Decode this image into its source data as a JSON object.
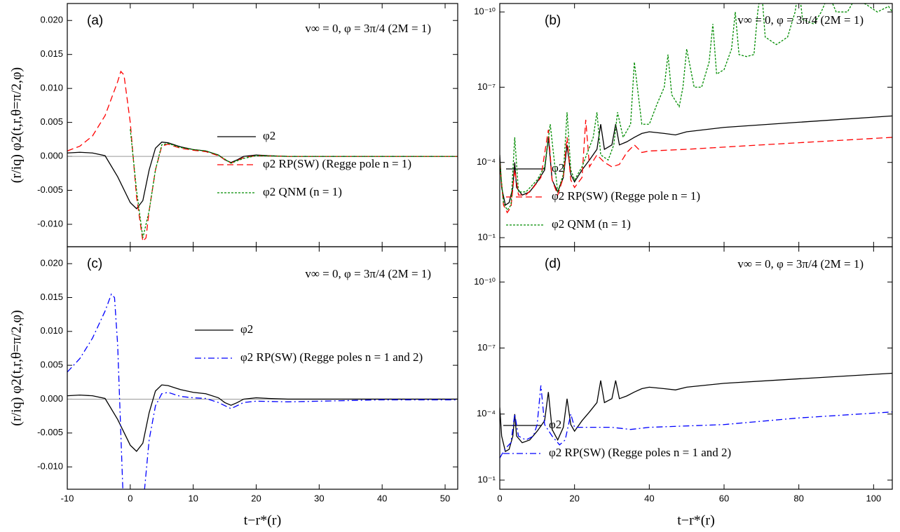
{
  "chart_data": [
    {
      "type": "line",
      "panel_label": "(a)",
      "annotation": "v∞ = 0, φ = 3π/4 (2M = 1)",
      "y_label": "(r/iq) φ2(t,r,θ=π/2,φ)",
      "xlim": [
        -10,
        52
      ],
      "xticks": [
        -10,
        0,
        10,
        20,
        30,
        40,
        50
      ],
      "ylim": [
        -0.0133,
        0.0225
      ],
      "yticks": [
        {
          "value": 0.02,
          "label": "0.020"
        },
        {
          "value": 0.015,
          "label": "0.015"
        },
        {
          "value": 0.01,
          "label": "0.010"
        },
        {
          "value": 0.005,
          "label": "0.005"
        },
        {
          "value": 0,
          "label": "0.000"
        },
        {
          "value": -0.005,
          "label": "-0.005"
        },
        {
          "value": -0.01,
          "label": "-0.010"
        }
      ],
      "log_y": false,
      "series": [
        {
          "name": "φ2",
          "color": "#000000",
          "dash": "solid",
          "x": [
            -10,
            -8,
            -6,
            -4,
            -2,
            0,
            1,
            2,
            3,
            4,
            5,
            6,
            8,
            10,
            12,
            14,
            15,
            16,
            17,
            18,
            20,
            22,
            25,
            30,
            40,
            52
          ],
          "values": [
            0.0005,
            0.0006,
            0.0005,
            0.0001,
            -0.003,
            -0.0068,
            -0.0077,
            -0.0065,
            -0.002,
            0.0012,
            0.0021,
            0.002,
            0.0014,
            0.001,
            0.0008,
            0.0002,
            -0.0005,
            -0.0009,
            -0.0005,
            0,
            0.0002,
            0.0001,
            0,
            0,
            0,
            0
          ]
        },
        {
          "name": "φ2 RP(SW) (Regge pole n = 1)",
          "color": "#ff0000",
          "dash": "dashed",
          "x": [
            -10,
            -8,
            -6,
            -4,
            -2,
            -1.5,
            -1,
            0,
            1,
            2,
            2.5,
            3,
            4,
            5,
            6,
            8,
            10,
            12,
            14,
            16,
            18,
            20,
            25,
            52
          ],
          "values": [
            0.0008,
            0.0015,
            0.003,
            0.006,
            0.011,
            0.0125,
            0.012,
            0.005,
            -0.006,
            -0.0125,
            -0.012,
            -0.008,
            -0.002,
            0.0015,
            0.0018,
            0.0012,
            0.0009,
            0.0007,
            0.0001,
            -0.001,
            -0.0002,
            0.0001,
            0,
            0
          ]
        },
        {
          "name": "φ2 QNM (n = 1)",
          "color": "#008c00",
          "dash": "dotted",
          "x": [
            0,
            1,
            2,
            3,
            4,
            5,
            6,
            8,
            10,
            12,
            14,
            16,
            18,
            20,
            25,
            52
          ],
          "values": [
            0.004,
            -0.005,
            -0.012,
            -0.008,
            -0.002,
            0.0017,
            0.0019,
            0.0013,
            0.001,
            0.0008,
            0.0002,
            -0.001,
            -0.0003,
            0.0001,
            0,
            0
          ]
        }
      ]
    },
    {
      "type": "line",
      "panel_label": "(b)",
      "annotation": "v∞ = 0, φ = 3π/4 (2M = 1)",
      "xlim": [
        0,
        105
      ],
      "xticks": [
        0,
        20,
        40,
        60,
        80,
        100
      ],
      "ylim": [
        0.23,
        4.6e-11
      ],
      "yticks": [
        {
          "value": 0.1,
          "label": "10⁻¹"
        },
        {
          "value": 0.0001,
          "label": "10⁻⁴"
        },
        {
          "value": 1e-07,
          "label": "10⁻⁷"
        },
        {
          "value": 1e-10,
          "label": "10⁻¹⁰"
        }
      ],
      "log_y": true,
      "series": [
        {
          "name": "φ2",
          "color": "#000000",
          "dash": "solid",
          "x": [
            0,
            0.5,
            1.5,
            2.5,
            3.5,
            4,
            4.5,
            6,
            8,
            10,
            12,
            13,
            14,
            15.5,
            17,
            18,
            19,
            20,
            22,
            24,
            26,
            27,
            28,
            30,
            31,
            32,
            34,
            36,
            38,
            40,
            44,
            47,
            50,
            60,
            80,
            105
          ],
          "values": [
            5e-05,
            0.001,
            0.005,
            0.004,
            0.001,
            0.0001,
            0.001,
            0.002,
            0.0015,
            0.0006,
            0.0002,
            1e-05,
            0.0005,
            0.0015,
            0.0004,
            2e-05,
            0.0003,
            0.0006,
            0.0002,
            8e-05,
            3e-05,
            3e-06,
            3e-05,
            2e-05,
            3e-06,
            2e-05,
            1.5e-05,
            1e-05,
            7e-06,
            6e-06,
            7e-06,
            8e-06,
            6e-06,
            4e-06,
            2.5e-06,
            1.4e-06
          ]
        },
        {
          "name": "φ2 RP(SW) (Regge pole n = 1)",
          "color": "#ff0000",
          "dash": "dashed",
          "x": [
            0,
            1,
            2,
            3,
            4,
            5,
            7,
            9,
            11,
            13,
            14,
            15.5,
            17,
            18,
            19,
            20,
            22,
            23,
            24,
            26,
            28,
            30,
            32,
            34,
            36,
            38,
            40,
            50,
            70,
            105
          ],
          "values": [
            0.0001,
            0.005,
            0.01,
            0.006,
            0.0002,
            0.002,
            0.002,
            0.001,
            0.0004,
            5e-06,
            0.0005,
            0.002,
            0.0004,
            1e-05,
            0.0005,
            0.001,
            0.0004,
            2e-06,
            0.00015,
            5e-05,
            0.0001,
            0.00015,
            0.00012,
            4e-05,
            2e-05,
            4e-05,
            3.5e-05,
            3e-05,
            2e-05,
            1e-05
          ]
        },
        {
          "name": "φ2 QNM (n = 1)",
          "color": "#008c00",
          "dash": "dotted",
          "x": [
            0,
            1,
            2,
            3,
            4,
            5,
            7,
            10,
            12,
            13.5,
            15.5,
            17,
            18,
            19,
            20,
            22,
            25,
            26,
            27,
            29,
            30.5,
            31.5,
            33,
            35,
            36,
            38,
            40,
            42,
            44,
            45,
            46,
            48,
            49,
            50,
            52,
            54,
            56,
            57,
            58,
            60,
            62,
            63,
            64,
            66,
            68,
            69,
            70,
            71,
            74,
            77,
            79,
            80,
            81,
            84,
            86,
            88,
            90,
            93,
            95,
            98,
            101,
            104,
            105
          ],
          "values": [
            0.0001,
            0.004,
            0.008,
            0.005,
            1e-05,
            0.0015,
            0.0015,
            0.0005,
            0.00015,
            3e-06,
            0.0015,
            0.0003,
            1e-06,
            0.0002,
            0.0005,
            0.00015,
            1e-05,
            1e-06,
            5e-05,
            8e-05,
            2e-05,
            1e-06,
            1e-05,
            3e-06,
            1e-08,
            3e-06,
            3e-06,
            5e-07,
            1e-07,
            5e-09,
            2e-07,
            6e-07,
            1e-07,
            3e-09,
            1e-07,
            1e-07,
            1e-08,
            3e-10,
            3e-08,
            2e-08,
            3e-09,
            1e-10,
            5e-09,
            6e-09,
            5e-09,
            1e-10,
            1e-11,
            1e-09,
            2e-09,
            1e-09,
            1e-10,
            1e-11,
            2e-10,
            3e-10,
            1e-10,
            2e-11,
            1e-10,
            1e-10,
            3e-11,
            5e-11,
            1e-10,
            6e-11,
            1e-10
          ]
        }
      ]
    },
    {
      "type": "line",
      "panel_label": "(c)",
      "annotation": "v∞ = 0, φ = 3π/4 (2M = 1)",
      "y_label": "(r/iq) φ2(t,r,θ=π/2,φ)",
      "x_label": "t−r*(r)",
      "xlim": [
        -10,
        52
      ],
      "xticks": [
        -10,
        0,
        10,
        20,
        30,
        40,
        50
      ],
      "ylim": [
        -0.0133,
        0.0225
      ],
      "yticks": [
        {
          "value": 0.02,
          "label": "0.020"
        },
        {
          "value": 0.015,
          "label": "0.015"
        },
        {
          "value": 0.01,
          "label": "0.010"
        },
        {
          "value": 0.005,
          "label": "0.005"
        },
        {
          "value": 0,
          "label": "0.000"
        },
        {
          "value": -0.005,
          "label": "-0.005"
        },
        {
          "value": -0.01,
          "label": "-0.010"
        }
      ],
      "log_y": false,
      "series": [
        {
          "name": "φ2",
          "color": "#000000",
          "dash": "solid",
          "x": [
            -10,
            -8,
            -6,
            -4,
            -2,
            0,
            1,
            2,
            3,
            4,
            5,
            6,
            8,
            10,
            12,
            14,
            15,
            16,
            17,
            18,
            20,
            22,
            25,
            30,
            40,
            52
          ],
          "values": [
            0.0005,
            0.0006,
            0.0005,
            0.0001,
            -0.003,
            -0.0068,
            -0.0077,
            -0.0065,
            -0.002,
            0.0012,
            0.0021,
            0.002,
            0.0014,
            0.001,
            0.0008,
            0.0002,
            -0.0005,
            -0.0009,
            -0.0005,
            0,
            0.0002,
            0.0001,
            0,
            0,
            0,
            0
          ]
        },
        {
          "name": "φ2 RP(SW) (Regge poles n = 1 and 2)",
          "color": "#0000ff",
          "dash": "dashdot",
          "x": [
            -10,
            -8,
            -6,
            -4,
            -3,
            -2.5,
            -2,
            -1.5,
            -1,
            2,
            3,
            4,
            5,
            6,
            8,
            10,
            12,
            14,
            16,
            18,
            20,
            25,
            30,
            40,
            52
          ],
          "values": [
            0.004,
            0.006,
            0.009,
            0.013,
            0.0155,
            0.015,
            0.008,
            -0.005,
            -0.018,
            -0.016,
            -0.006,
            -0.001,
            0.0008,
            0.001,
            0.0004,
            0.0002,
            0.0001,
            -0.0005,
            -0.0014,
            -0.0005,
            -0.0003,
            -0.0004,
            -0.0003,
            -0.0001,
            -0.0001
          ]
        }
      ]
    },
    {
      "type": "line",
      "panel_label": "(d)",
      "annotation": "v∞ = 0, φ = 3π/4 (2M = 1)",
      "x_label": "t−r*(r)",
      "xlim": [
        0,
        105
      ],
      "xticks": [
        0,
        20,
        40,
        60,
        80,
        100
      ],
      "ylim": [
        0.26,
        2.5e-12
      ],
      "yticks": [
        {
          "value": 0.1,
          "label": "10⁻¹"
        },
        {
          "value": 0.0001,
          "label": "10⁻⁴"
        },
        {
          "value": 1e-07,
          "label": "10⁻⁷"
        },
        {
          "value": 1e-10,
          "label": "10⁻¹⁰"
        }
      ],
      "log_y": true,
      "series": [
        {
          "name": "φ2",
          "color": "#000000",
          "dash": "solid",
          "x": [
            0,
            0.5,
            1.5,
            2.5,
            3.5,
            4,
            4.5,
            6,
            8,
            10,
            12,
            13,
            14,
            15.5,
            17,
            18,
            19,
            20,
            22,
            24,
            26,
            27,
            28,
            30,
            31,
            32,
            34,
            36,
            38,
            40,
            44,
            47,
            50,
            60,
            80,
            105
          ],
          "values": [
            5e-05,
            0.001,
            0.005,
            0.004,
            0.001,
            0.0001,
            0.001,
            0.002,
            0.0015,
            0.0006,
            0.0002,
            1e-05,
            0.0005,
            0.0015,
            0.0004,
            2e-05,
            0.0003,
            0.0006,
            0.0002,
            8e-05,
            3e-05,
            3e-06,
            3e-05,
            2e-05,
            3e-06,
            2e-05,
            1.5e-05,
            1e-05,
            7e-06,
            6e-06,
            7e-06,
            8e-06,
            6e-06,
            4e-06,
            2.5e-06,
            1.4e-06
          ]
        },
        {
          "name": "φ2 RP(SW) (Regge poles n = 1 and 2)",
          "color": "#0000ff",
          "dash": "dashdot",
          "x": [
            0,
            1,
            2,
            3,
            4,
            5,
            7,
            9,
            10,
            11,
            12,
            14,
            16,
            17.5,
            19,
            20,
            25,
            30,
            35,
            40,
            60,
            80,
            105
          ],
          "values": [
            0.01,
            0.005,
            0.003,
            0.002,
            0.0001,
            0.001,
            0.0015,
            0.001,
            0.0003,
            5e-06,
            0.0003,
            0.001,
            0.0025,
            0.0015,
            0.0001,
            0.0004,
            0.0004,
            0.0004,
            0.0005,
            0.0004,
            0.0003,
            0.00015,
            8e-05
          ]
        }
      ]
    }
  ]
}
